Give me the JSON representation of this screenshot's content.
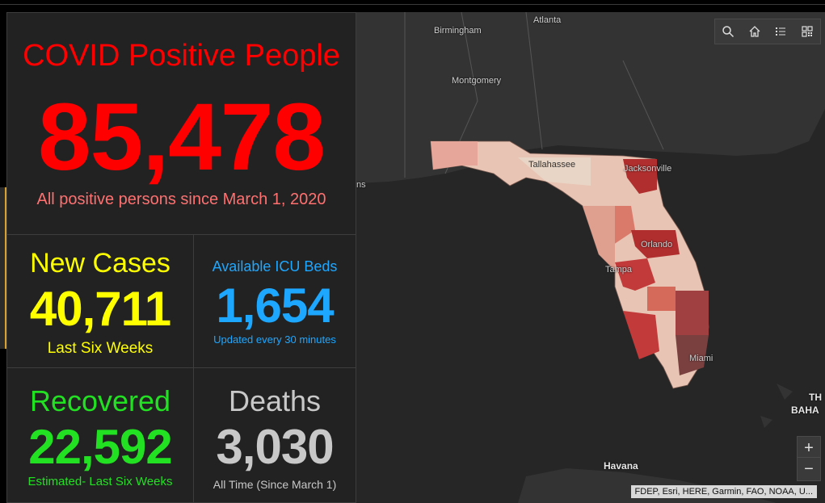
{
  "total": {
    "title": "COVID Positive People",
    "value": "85,478",
    "subtitle": "All positive persons since March 1, 2020"
  },
  "new_cases": {
    "title": "New Cases",
    "value": "40,711",
    "subtitle": "Last Six Weeks"
  },
  "icu": {
    "title": "Available ICU Beds",
    "value": "1,654",
    "subtitle": "Updated every 30 minutes"
  },
  "recovered": {
    "title": "Recovered",
    "value": "22,592",
    "subtitle": "Estimated- Last Six Weeks"
  },
  "deaths": {
    "title": "Deaths",
    "value": "3,030",
    "subtitle": "All Time (Since March 1)"
  },
  "map": {
    "cities": {
      "atlanta": "Atlanta",
      "birmingham": "Birmingham",
      "montgomery": "Montgomery",
      "tallahassee": "Tallahassee",
      "jacksonville": "Jacksonville",
      "orlando": "Orlando",
      "tampa": "Tampa",
      "miami": "Miami",
      "havana": "Havana",
      "ns_fragment": "ns",
      "bahamas_line1": "TH",
      "bahamas_line2": "BAHA"
    },
    "attribution": "FDEP, Esri, HERE, Garmin, FAO, NOAA, U...",
    "zoom_in": "+",
    "zoom_out": "−"
  },
  "colors": {
    "red": "#ff0000",
    "pink": "#ff7070",
    "yellow": "#ffff00",
    "blue": "#1ea7ff",
    "green": "#22e022",
    "grey": "#c8c8c8",
    "panel_bg": "#222222"
  },
  "icons": [
    "search-icon",
    "home-icon",
    "list-icon",
    "qr-grid-icon"
  ]
}
